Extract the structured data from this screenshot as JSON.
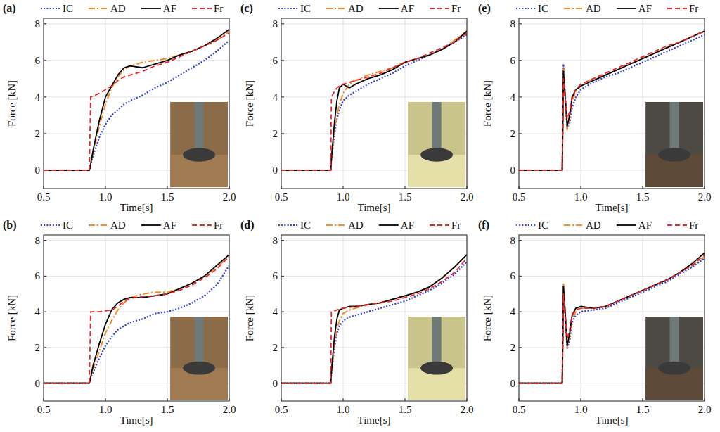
{
  "chart_data": [
    {
      "type": "line",
      "title": "(a)",
      "xlabel": "Time[s]",
      "ylabel": "Force [kN]",
      "x": [
        0.5,
        0.87,
        0.88,
        0.9,
        0.95,
        1.0,
        1.05,
        1.1,
        1.15,
        1.2,
        1.3,
        1.4,
        1.5,
        1.6,
        1.7,
        1.8,
        1.9,
        2.0
      ],
      "xlim": [
        0.5,
        2.0
      ],
      "xticks": [
        0.5,
        {
          "value": 1,
          "label": "1.0"
        },
        1.5,
        {
          "value": 2,
          "label": "2.0"
        }
      ],
      "ylim": [
        -1,
        8.3
      ],
      "yticks": [
        0,
        2,
        4,
        6,
        8
      ],
      "grid": true,
      "legend": "top",
      "series": [
        {
          "name": "IC",
          "color": "#2e3ed8",
          "line_style": "dotted",
          "values": [
            0,
            0,
            0.3,
            0.8,
            1.8,
            2.5,
            3.0,
            3.3,
            3.6,
            3.8,
            4.1,
            4.5,
            4.8,
            5.2,
            5.6,
            6.0,
            6.5,
            7.1
          ]
        },
        {
          "name": "AD",
          "color": "#f28c28",
          "line_style": "dashdot",
          "values": [
            0,
            0,
            0.3,
            1.0,
            2.4,
            3.6,
            4.5,
            5.1,
            5.5,
            5.7,
            5.9,
            6.0,
            6.1,
            6.3,
            6.5,
            6.8,
            7.1,
            7.6
          ]
        },
        {
          "name": "AF",
          "color": "#000000",
          "line_style": "solid",
          "values": [
            0,
            0,
            0.3,
            1.1,
            2.7,
            4.0,
            4.6,
            5.2,
            5.6,
            5.7,
            5.6,
            5.8,
            6.0,
            6.3,
            6.5,
            6.8,
            7.2,
            7.7
          ]
        },
        {
          "name": "Fr",
          "color": "#e8262a",
          "line_style": "dashed",
          "values": [
            0,
            0,
            4,
            4.05,
            4.2,
            4.4,
            4.6,
            4.9,
            5.1,
            5.2,
            5.4,
            5.7,
            5.9,
            6.2,
            6.5,
            6.8,
            7.1,
            7.5
          ]
        }
      ]
    },
    {
      "type": "line",
      "title": "(b)",
      "xlabel": "Time[s]",
      "ylabel": "Force [kN]",
      "x": [
        0.5,
        0.87,
        0.88,
        0.9,
        0.95,
        1.0,
        1.05,
        1.1,
        1.15,
        1.2,
        1.3,
        1.4,
        1.5,
        1.6,
        1.7,
        1.8,
        1.9,
        2.0
      ],
      "xlim": [
        0.5,
        2.0
      ],
      "xticks": [
        0.5,
        {
          "value": 1,
          "label": "1.0"
        },
        1.5,
        {
          "value": 2,
          "label": "2.0"
        }
      ],
      "ylim": [
        -1,
        8.3
      ],
      "yticks": [
        0,
        2,
        4,
        6,
        8
      ],
      "grid": true,
      "legend": "top",
      "series": [
        {
          "name": "IC",
          "color": "#2e3ed8",
          "line_style": "dotted",
          "values": [
            0,
            0,
            0.3,
            0.6,
            1.4,
            2.1,
            2.6,
            3.0,
            3.2,
            3.4,
            3.6,
            3.9,
            4.0,
            4.2,
            4.5,
            4.9,
            5.5,
            6.6
          ]
        },
        {
          "name": "AD",
          "color": "#f28c28",
          "line_style": "dashdot",
          "values": [
            0,
            0,
            0.3,
            0.8,
            1.8,
            2.8,
            3.5,
            4.1,
            4.5,
            4.8,
            5.0,
            5.1,
            5.1,
            5.3,
            5.6,
            6.0,
            6.5,
            7.1
          ]
        },
        {
          "name": "AF",
          "color": "#000000",
          "line_style": "solid",
          "values": [
            0,
            0,
            0.3,
            1.0,
            2.2,
            3.3,
            4.1,
            4.5,
            4.7,
            4.8,
            4.8,
            4.9,
            5.0,
            5.3,
            5.6,
            6.0,
            6.6,
            7.2
          ]
        },
        {
          "name": "Fr",
          "color": "#e8262a",
          "line_style": "dashed",
          "values": [
            0,
            0,
            4,
            4,
            4,
            4.05,
            4.1,
            4.3,
            4.6,
            4.75,
            4.85,
            4.9,
            5.0,
            5.2,
            5.5,
            5.9,
            6.4,
            7.1
          ]
        }
      ]
    },
    {
      "type": "line",
      "title": "(c)",
      "xlabel": "Time[s]",
      "ylabel": "Force [kN]",
      "x": [
        0.5,
        0.9,
        0.905,
        0.93,
        0.95,
        0.97,
        1.0,
        1.05,
        1.1,
        1.2,
        1.3,
        1.4,
        1.5,
        1.6,
        1.7,
        1.8,
        1.9,
        2.0
      ],
      "xlim": [
        0.5,
        2.0
      ],
      "xticks": [
        0.5,
        {
          "value": 1,
          "label": "1.0"
        },
        1.5,
        {
          "value": 2,
          "label": "2.0"
        }
      ],
      "ylim": [
        -1,
        8.3
      ],
      "yticks": [
        0,
        2,
        4,
        6,
        8
      ],
      "grid": true,
      "legend": "top",
      "series": [
        {
          "name": "IC",
          "color": "#2e3ed8",
          "line_style": "dotted",
          "values": [
            0,
            0,
            0.5,
            2.0,
            2.8,
            3.3,
            3.8,
            4.1,
            4.3,
            4.7,
            5.0,
            5.3,
            5.7,
            6.0,
            6.3,
            6.6,
            7.0,
            7.4
          ]
        },
        {
          "name": "AD",
          "color": "#f28c28",
          "line_style": "dashdot",
          "values": [
            0,
            0,
            0.5,
            2.2,
            3.0,
            3.6,
            4.2,
            4.7,
            4.9,
            5.2,
            5.4,
            5.6,
            5.9,
            6.1,
            6.3,
            6.6,
            7.1,
            7.6
          ]
        },
        {
          "name": "AF",
          "color": "#000000",
          "line_style": "solid",
          "values": [
            0,
            0,
            0.6,
            2.6,
            3.8,
            4.5,
            4.7,
            4.5,
            4.7,
            5.0,
            5.2,
            5.5,
            5.9,
            6.1,
            6.3,
            6.6,
            7.0,
            7.6
          ]
        },
        {
          "name": "Fr",
          "color": "#e8262a",
          "line_style": "dashed",
          "values": [
            0,
            0,
            4,
            4.3,
            4.5,
            4.6,
            4.7,
            4.8,
            4.9,
            5.1,
            5.3,
            5.6,
            5.9,
            6.1,
            6.4,
            6.7,
            7.0,
            7.5
          ]
        }
      ]
    },
    {
      "type": "line",
      "title": "(d)",
      "xlabel": "Time[s]",
      "ylabel": "Force [kN]",
      "x": [
        0.5,
        0.9,
        0.905,
        0.93,
        0.95,
        0.97,
        1.0,
        1.05,
        1.1,
        1.2,
        1.3,
        1.4,
        1.5,
        1.6,
        1.7,
        1.8,
        1.9,
        2.0
      ],
      "xlim": [
        0.5,
        2.0
      ],
      "xticks": [
        0.5,
        {
          "value": 1,
          "label": "1.0"
        },
        1.5,
        {
          "value": 2,
          "label": "2.0"
        }
      ],
      "ylim": [
        -1,
        8.3
      ],
      "yticks": [
        0,
        2,
        4,
        6,
        8
      ],
      "grid": true,
      "legend": "top",
      "series": [
        {
          "name": "IC",
          "color": "#2e3ed8",
          "line_style": "dotted",
          "values": [
            0,
            0,
            0.5,
            2.0,
            2.8,
            3.2,
            3.5,
            3.7,
            3.8,
            4.0,
            4.2,
            4.4,
            4.6,
            4.9,
            5.2,
            5.6,
            6.1,
            6.8
          ]
        },
        {
          "name": "AD",
          "color": "#f28c28",
          "line_style": "dashdot",
          "values": [
            0,
            0,
            0.5,
            2.2,
            3.0,
            3.5,
            3.9,
            4.1,
            4.2,
            4.4,
            4.5,
            4.7,
            4.9,
            5.1,
            5.4,
            5.9,
            6.5,
            7.2
          ]
        },
        {
          "name": "AF",
          "color": "#000000",
          "line_style": "solid",
          "values": [
            0,
            0,
            0.6,
            2.6,
            3.6,
            4.1,
            4.2,
            4.3,
            4.3,
            4.4,
            4.5,
            4.7,
            4.9,
            5.1,
            5.4,
            5.9,
            6.5,
            7.2
          ]
        },
        {
          "name": "Fr",
          "color": "#e8262a",
          "line_style": "dashed",
          "values": [
            0,
            0,
            4,
            4.05,
            4.1,
            4.15,
            4.2,
            4.25,
            4.3,
            4.4,
            4.5,
            4.6,
            4.8,
            5.0,
            5.3,
            5.7,
            6.2,
            7.0
          ]
        }
      ]
    },
    {
      "type": "line",
      "title": "(e)",
      "xlabel": "Time[s]",
      "ylabel": "Force [kN]",
      "x": [
        0.5,
        0.85,
        0.86,
        0.87,
        0.89,
        0.91,
        0.93,
        0.96,
        1.0,
        1.1,
        1.2,
        1.3,
        1.4,
        1.5,
        1.6,
        1.7,
        1.8,
        1.9,
        2.0
      ],
      "xlim": [
        0.5,
        2.0
      ],
      "xticks": [
        0.5,
        {
          "value": 1,
          "label": "1.0"
        },
        1.5,
        {
          "value": 2,
          "label": "2.0"
        }
      ],
      "ylim": [
        -1,
        8.3
      ],
      "yticks": [
        0,
        2,
        4,
        6,
        8
      ],
      "grid": true,
      "legend": "top",
      "series": [
        {
          "name": "IC",
          "color": "#2e3ed8",
          "line_style": "dotted",
          "values": [
            0,
            0,
            5.8,
            4.5,
            2.3,
            2.6,
            3.4,
            4.0,
            4.4,
            4.8,
            5.1,
            5.3,
            5.6,
            5.9,
            6.2,
            6.5,
            6.8,
            7.1,
            7.4
          ]
        },
        {
          "name": "AD",
          "color": "#f28c28",
          "line_style": "dashdot",
          "values": [
            0,
            0,
            5.6,
            4.6,
            2.2,
            2.8,
            3.8,
            4.3,
            4.6,
            5.0,
            5.2,
            5.5,
            5.8,
            6.1,
            6.4,
            6.7,
            7.0,
            7.3,
            7.6
          ]
        },
        {
          "name": "AF",
          "color": "#000000",
          "line_style": "solid",
          "values": [
            0,
            0,
            5.4,
            4.4,
            2.4,
            3.0,
            4.0,
            4.4,
            4.6,
            4.9,
            5.2,
            5.5,
            5.8,
            6.1,
            6.4,
            6.7,
            7.0,
            7.3,
            7.6
          ]
        },
        {
          "name": "Fr",
          "color": "#e8262a",
          "line_style": "dashed",
          "values": [
            0,
            0,
            5.0,
            4.2,
            2.8,
            3.2,
            4.0,
            4.4,
            4.7,
            5.0,
            5.3,
            5.6,
            5.9,
            6.2,
            6.5,
            6.8,
            7.0,
            7.3,
            7.6
          ]
        }
      ]
    },
    {
      "type": "line",
      "title": "(f)",
      "xlabel": "Time[s]",
      "ylabel": "Force [kN]",
      "x": [
        0.5,
        0.85,
        0.86,
        0.87,
        0.89,
        0.91,
        0.93,
        0.96,
        1.0,
        1.1,
        1.2,
        1.3,
        1.4,
        1.5,
        1.6,
        1.7,
        1.8,
        1.9,
        2.0
      ],
      "xlim": [
        0.5,
        2.0
      ],
      "xticks": [
        0.5,
        {
          "value": 1,
          "label": "1.0"
        },
        1.5,
        {
          "value": 2,
          "label": "2.0"
        }
      ],
      "ylim": [
        -1,
        8.3
      ],
      "yticks": [
        0,
        2,
        4,
        6,
        8
      ],
      "grid": true,
      "legend": "top",
      "series": [
        {
          "name": "IC",
          "color": "#2e3ed8",
          "line_style": "dotted",
          "values": [
            0,
            0,
            5.5,
            4.3,
            1.9,
            2.4,
            3.4,
            3.8,
            4.0,
            4.1,
            4.2,
            4.5,
            4.8,
            5.1,
            5.4,
            5.7,
            6.1,
            6.5,
            7.0
          ]
        },
        {
          "name": "AD",
          "color": "#f28c28",
          "line_style": "dashdot",
          "values": [
            0,
            0,
            5.6,
            4.5,
            2.0,
            2.6,
            3.6,
            4.0,
            4.2,
            4.2,
            4.3,
            4.6,
            4.9,
            5.2,
            5.5,
            5.8,
            6.2,
            6.6,
            7.1
          ]
        },
        {
          "name": "AF",
          "color": "#000000",
          "line_style": "solid",
          "values": [
            0,
            0,
            5.4,
            4.4,
            2.1,
            2.8,
            3.8,
            4.2,
            4.3,
            4.2,
            4.3,
            4.6,
            4.9,
            5.2,
            5.5,
            5.8,
            6.2,
            6.7,
            7.3
          ]
        },
        {
          "name": "Fr",
          "color": "#e8262a",
          "line_style": "dashed",
          "values": [
            0,
            0,
            5.0,
            4.0,
            2.5,
            3.0,
            3.8,
            4.1,
            4.2,
            4.2,
            4.3,
            4.6,
            4.9,
            5.2,
            5.5,
            5.8,
            6.2,
            6.6,
            7.2
          ]
        }
      ]
    }
  ]
}
